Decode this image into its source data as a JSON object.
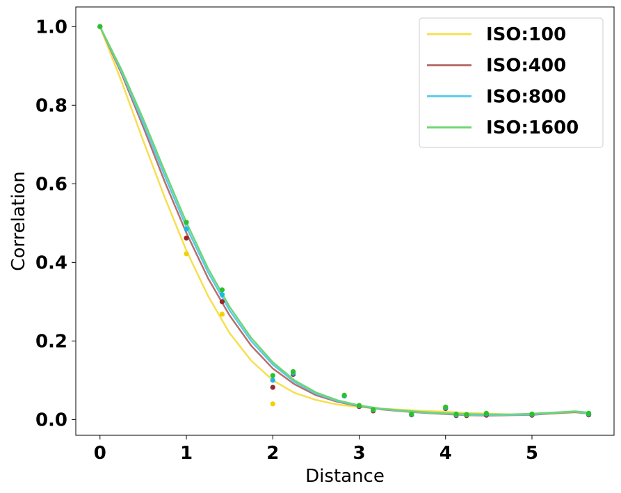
{
  "chart_data": {
    "type": "scatter",
    "xlabel": "Distance",
    "ylabel": "Correlation",
    "xlim": [
      -0.28,
      5.95
    ],
    "ylim": [
      -0.04,
      1.05
    ],
    "xticks": [
      0,
      1,
      2,
      3,
      4,
      5
    ],
    "yticks": [
      0.0,
      0.2,
      0.4,
      0.6,
      0.8,
      1.0
    ],
    "xtick_labels": [
      "0",
      "1",
      "2",
      "3",
      "4",
      "5"
    ],
    "ytick_labels": [
      "0.0",
      "0.2",
      "0.4",
      "0.6",
      "0.8",
      "1.0"
    ],
    "grid": false,
    "legend_position": "top-right",
    "x": [
      0,
      1,
      1.414,
      2,
      2.236,
      2.828,
      3,
      3.162,
      3.606,
      4,
      4.123,
      4.243,
      4.472,
      5,
      5.657
    ],
    "series": [
      {
        "name": "ISO:100",
        "line_color": "#f7df4f",
        "point_color": "#f5d000",
        "points": [
          1.0,
          0.422,
          0.268,
          0.04,
          0.12,
          0.062,
          0.034,
          0.024,
          0.012,
          0.03,
          0.012,
          0.01,
          0.012,
          0.012,
          0.012
        ],
        "curve": [
          [
            0,
            1.0
          ],
          [
            0.25,
            0.86
          ],
          [
            0.5,
            0.71
          ],
          [
            0.75,
            0.565
          ],
          [
            1,
            0.43
          ],
          [
            1.25,
            0.315
          ],
          [
            1.5,
            0.22
          ],
          [
            1.75,
            0.15
          ],
          [
            2,
            0.1
          ],
          [
            2.25,
            0.068
          ],
          [
            2.5,
            0.05
          ],
          [
            2.75,
            0.038
          ],
          [
            3,
            0.032
          ],
          [
            3.25,
            0.028
          ],
          [
            3.5,
            0.025
          ],
          [
            3.75,
            0.022
          ],
          [
            4,
            0.02
          ],
          [
            4.25,
            0.017
          ],
          [
            4.5,
            0.015
          ],
          [
            4.75,
            0.013
          ],
          [
            5,
            0.013
          ],
          [
            5.25,
            0.015
          ],
          [
            5.5,
            0.018
          ],
          [
            5.657,
            0.015
          ]
        ]
      },
      {
        "name": "ISO:400",
        "line_color": "#b86e6a",
        "point_color": "#9b2828",
        "points": [
          1.0,
          0.462,
          0.3,
          0.082,
          0.115,
          0.06,
          0.033,
          0.022,
          0.012,
          0.028,
          0.01,
          0.01,
          0.011,
          0.011,
          0.012
        ],
        "curve": [
          [
            0,
            1.0
          ],
          [
            0.25,
            0.88
          ],
          [
            0.5,
            0.745
          ],
          [
            0.75,
            0.605
          ],
          [
            1,
            0.475
          ],
          [
            1.25,
            0.36
          ],
          [
            1.5,
            0.265
          ],
          [
            1.75,
            0.188
          ],
          [
            2,
            0.13
          ],
          [
            2.25,
            0.09
          ],
          [
            2.5,
            0.062
          ],
          [
            2.75,
            0.045
          ],
          [
            3,
            0.034
          ],
          [
            3.25,
            0.026
          ],
          [
            3.5,
            0.021
          ],
          [
            3.75,
            0.017
          ],
          [
            4,
            0.014
          ],
          [
            4.25,
            0.011
          ],
          [
            4.5,
            0.01
          ],
          [
            4.75,
            0.011
          ],
          [
            5,
            0.012
          ],
          [
            5.25,
            0.016
          ],
          [
            5.5,
            0.019
          ],
          [
            5.657,
            0.015
          ]
        ]
      },
      {
        "name": "ISO:800",
        "line_color": "#5acbef",
        "point_color": "#1ab8e6",
        "points": [
          1.0,
          0.485,
          0.318,
          0.1,
          0.118,
          0.06,
          0.035,
          0.024,
          0.013,
          0.03,
          0.012,
          0.012,
          0.014,
          0.013,
          0.014
        ],
        "curve": [
          [
            0,
            1.0
          ],
          [
            0.25,
            0.885
          ],
          [
            0.5,
            0.755
          ],
          [
            0.75,
            0.62
          ],
          [
            1,
            0.49
          ],
          [
            1.25,
            0.375
          ],
          [
            1.5,
            0.278
          ],
          [
            1.75,
            0.2
          ],
          [
            2,
            0.14
          ],
          [
            2.25,
            0.096
          ],
          [
            2.5,
            0.066
          ],
          [
            2.75,
            0.047
          ],
          [
            3,
            0.035
          ],
          [
            3.25,
            0.027
          ],
          [
            3.5,
            0.022
          ],
          [
            3.75,
            0.018
          ],
          [
            4,
            0.015
          ],
          [
            4.25,
            0.012
          ],
          [
            4.5,
            0.011
          ],
          [
            4.75,
            0.012
          ],
          [
            5,
            0.013
          ],
          [
            5.25,
            0.017
          ],
          [
            5.5,
            0.02
          ],
          [
            5.657,
            0.016
          ]
        ]
      },
      {
        "name": "ISO:1600",
        "line_color": "#6fd672",
        "point_color": "#2cc12c",
        "points": [
          1.0,
          0.502,
          0.33,
          0.112,
          0.122,
          0.062,
          0.036,
          0.025,
          0.014,
          0.032,
          0.014,
          0.013,
          0.016,
          0.014,
          0.016
        ],
        "curve": [
          [
            0,
            1.0
          ],
          [
            0.25,
            0.89
          ],
          [
            0.5,
            0.765
          ],
          [
            0.75,
            0.632
          ],
          [
            1,
            0.502
          ],
          [
            1.25,
            0.385
          ],
          [
            1.5,
            0.287
          ],
          [
            1.75,
            0.208
          ],
          [
            2,
            0.146
          ],
          [
            2.25,
            0.1
          ],
          [
            2.5,
            0.069
          ],
          [
            2.75,
            0.049
          ],
          [
            3,
            0.036
          ],
          [
            3.25,
            0.028
          ],
          [
            3.5,
            0.023
          ],
          [
            3.75,
            0.019
          ],
          [
            4,
            0.016
          ],
          [
            4.25,
            0.014
          ],
          [
            4.5,
            0.013
          ],
          [
            4.75,
            0.013
          ],
          [
            5,
            0.015
          ],
          [
            5.25,
            0.018
          ],
          [
            5.5,
            0.021
          ],
          [
            5.657,
            0.018
          ]
        ]
      }
    ]
  }
}
